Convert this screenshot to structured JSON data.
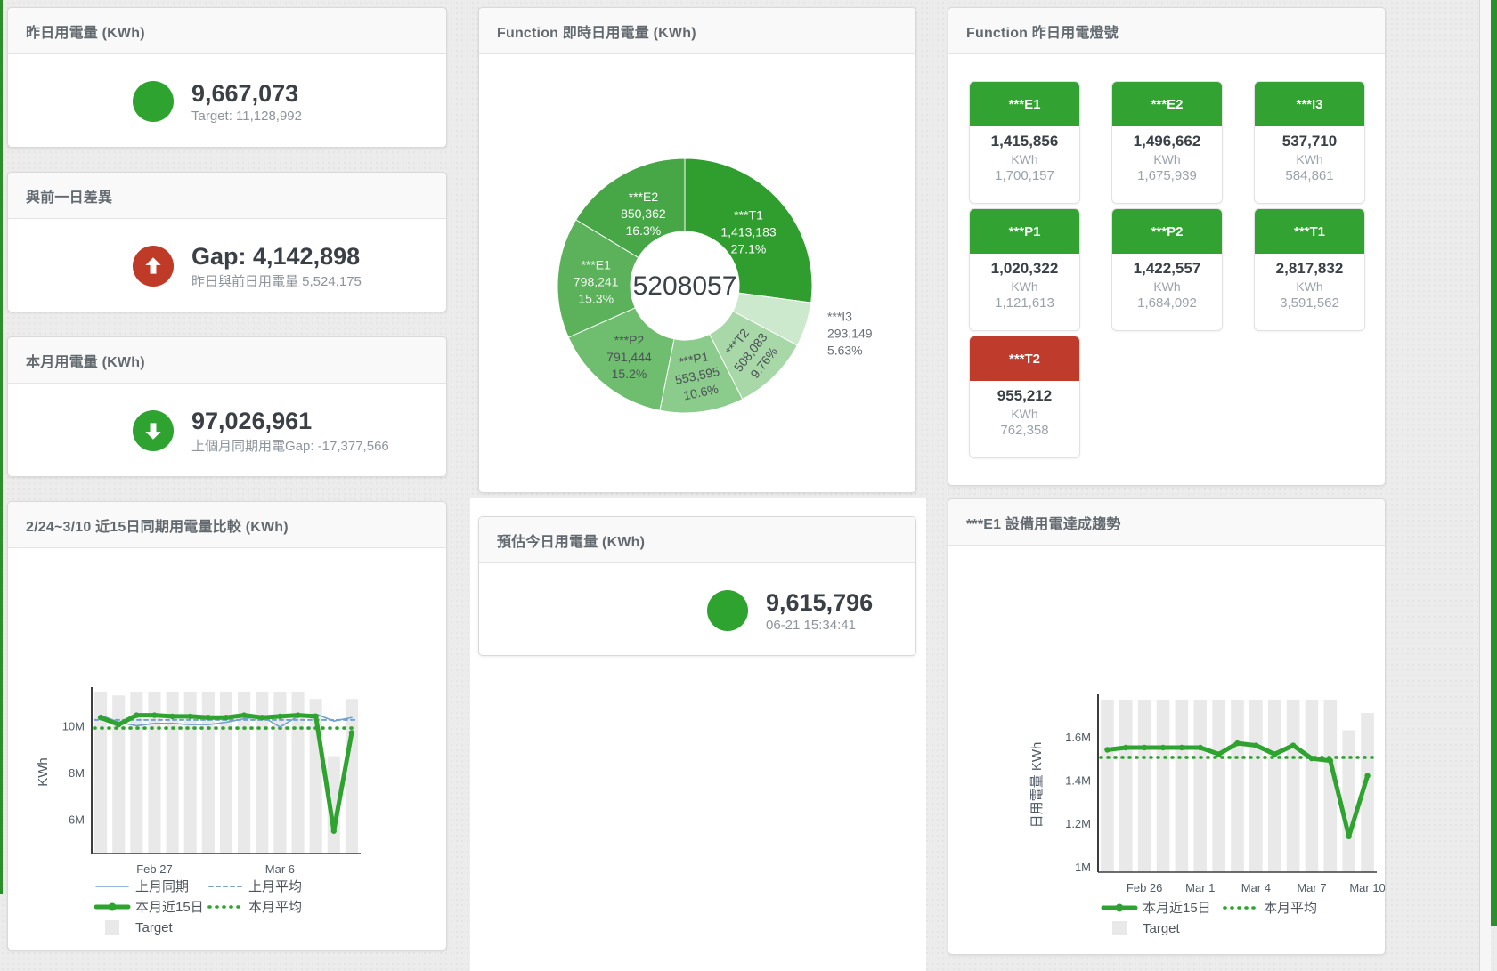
{
  "colors": {
    "green": "#2fa32f",
    "red": "#c03a28",
    "tile_green": "#32a232",
    "tile_red": "#bf3b2b",
    "blue_line": "#72a1cb",
    "bar_gray": "#e9e9e9",
    "page_bg": "#ececec"
  },
  "panels": {
    "yesterday": {
      "title": "昨日用電量 (KWh)",
      "value": "9,667,073",
      "subtext": "Target: 11,128,992"
    },
    "gap": {
      "title": "與前一日差異",
      "value": "Gap: 4,142,898",
      "subtext": "昨日與前日用電量 5,524,175"
    },
    "month": {
      "title": "本月用電量 (KWh)",
      "value": "97,026,961",
      "subtext": "上個月同期用電Gap: -17,377,566"
    },
    "forecast": {
      "title": "預估今日用電量 (KWh)",
      "value": "9,615,796",
      "subtext": "06-21 15:34:41"
    },
    "realtime": {
      "title": "Function 即時日用電量 (KWh)"
    },
    "lights": {
      "title": "Function 昨日用電燈號"
    },
    "compare": {
      "title": "2/24~3/10 近15日同期用電量比較 (KWh)"
    },
    "e1trend": {
      "title": "***E1 設備用電達成趨勢"
    }
  },
  "lights_tiles": [
    {
      "label": "***E1",
      "value": "1,415,856",
      "unit": "KWh",
      "target": "1,700,157",
      "status": "green"
    },
    {
      "label": "***E2",
      "value": "1,496,662",
      "unit": "KWh",
      "target": "1,675,939",
      "status": "green"
    },
    {
      "label": "***I3",
      "value": "537,710",
      "unit": "KWh",
      "target": "584,861",
      "status": "green"
    },
    {
      "label": "***P1",
      "value": "1,020,322",
      "unit": "KWh",
      "target": "1,121,613",
      "status": "green"
    },
    {
      "label": "***P2",
      "value": "1,422,557",
      "unit": "KWh",
      "target": "1,684,092",
      "status": "green"
    },
    {
      "label": "***T1",
      "value": "2,817,832",
      "unit": "KWh",
      "target": "3,591,562",
      "status": "green"
    },
    {
      "label": "***T2",
      "value": "955,212",
      "unit": "KWh",
      "target": "762,358",
      "status": "red"
    }
  ],
  "chart_data": [
    {
      "type": "pie",
      "title": "Function 即時日用電量 (KWh)",
      "center_total": "5208057",
      "legend_position": "none",
      "slices": [
        {
          "name": "***T1",
          "value": 1413183,
          "pct": "27.1%",
          "color": "#2f9e2f",
          "label_color": "#ffffff",
          "label_r": 95,
          "label_rot": 0,
          "placement": "inside"
        },
        {
          "name": "***I3",
          "value": 293149,
          "pct": "5.63%",
          "color": "#cde9cd",
          "label_color": "#6a7076",
          "label_r": 168,
          "label_rot": 0,
          "placement": "outside"
        },
        {
          "name": "***T2",
          "value": 508083,
          "pct": "9.76%",
          "color": "#a8d8a8",
          "label_color": "#4c5258",
          "label_r": 103,
          "label_rot": -52,
          "placement": "inside"
        },
        {
          "name": "***P1",
          "value": 553595,
          "pct": "10.6%",
          "color": "#8bcb8b",
          "label_color": "#4c5258",
          "label_r": 100,
          "label_rot": -12,
          "placement": "inside"
        },
        {
          "name": "***P2",
          "value": 791444,
          "pct": "15.2%",
          "color": "#6fbd6f",
          "label_color": "#4c5258",
          "label_r": 100,
          "label_rot": 0,
          "placement": "inside"
        },
        {
          "name": "***E1",
          "value": 798241,
          "pct": "15.3%",
          "color": "#5bb25b",
          "label_color": "#f2f5f2",
          "label_r": 100,
          "label_rot": 0,
          "placement": "inside"
        },
        {
          "name": "***E2",
          "value": 850362,
          "pct": "16.3%",
          "color": "#47a747",
          "label_color": "#ffffff",
          "label_r": 95,
          "label_rot": 0,
          "placement": "inside"
        }
      ]
    },
    {
      "type": "line",
      "title": "2/24~3/10 近15日同期用電量比較 (KWh)",
      "ylabel": "KWh",
      "unit_scale": "millions",
      "grid": false,
      "categories": [
        "2/24",
        "2/25",
        "2/26",
        "2/27",
        "2/28",
        "3/1",
        "3/2",
        "3/3",
        "3/4",
        "3/5",
        "3/6",
        "3/7",
        "3/8",
        "3/9",
        "3/10"
      ],
      "target_bars": [
        11.45,
        11.3,
        11.45,
        11.45,
        11.45,
        11.45,
        11.45,
        11.45,
        11.45,
        11.45,
        11.45,
        11.45,
        11.15,
        8.7,
        11.15
      ],
      "series": [
        {
          "name": "上月同期",
          "style": "line-blue",
          "values": [
            10.45,
            10.15,
            10.0,
            10.1,
            10.1,
            10.05,
            10.05,
            10.15,
            10.3,
            10.4,
            9.95,
            10.4,
            10.5,
            10.2,
            10.35
          ]
        },
        {
          "name": "本月近15日",
          "style": "line-green",
          "values": [
            10.35,
            10.05,
            10.45,
            10.45,
            10.4,
            10.4,
            10.35,
            10.35,
            10.45,
            10.35,
            10.4,
            10.45,
            10.4,
            5.5,
            9.7
          ]
        }
      ],
      "avg_lines": [
        {
          "name": "上月平均",
          "style": "dash-blue",
          "value": 10.25
        },
        {
          "name": "本月平均",
          "style": "dot-green",
          "value": 9.9
        }
      ],
      "target_name": "Target",
      "ylim": [
        4.54,
        11.5
      ],
      "yticks": [
        {
          "v": 6,
          "label": "6M"
        },
        {
          "v": 8,
          "label": "8M"
        },
        {
          "v": 10,
          "label": "10M"
        }
      ],
      "xticks": [
        {
          "i": 3,
          "label": "Feb 27"
        },
        {
          "i": 10,
          "label": "Mar 6"
        }
      ],
      "legend_rows": [
        [
          {
            "label": "上月同期",
            "style": "line-blue"
          },
          {
            "label": "上月平均",
            "style": "dash-blue"
          }
        ],
        [
          {
            "label": "本月近15日",
            "style": "line-green"
          },
          {
            "label": "本月平均",
            "style": "dot-green"
          }
        ],
        [
          {
            "label": "Target",
            "style": "box-gray"
          }
        ]
      ]
    },
    {
      "type": "line",
      "title": "***E1 設備用電達成趨勢",
      "ylabel": "日用電量 KWh",
      "unit_scale": "millions",
      "grid": false,
      "categories": [
        "2/24",
        "2/25",
        "2/26",
        "2/27",
        "2/28",
        "3/1",
        "3/2",
        "3/3",
        "3/4",
        "3/5",
        "3/6",
        "3/7",
        "3/8",
        "3/9",
        "3/10"
      ],
      "target_bars": [
        1.77,
        1.77,
        1.77,
        1.77,
        1.77,
        1.77,
        1.77,
        1.77,
        1.77,
        1.77,
        1.77,
        1.77,
        1.77,
        1.63,
        1.71
      ],
      "series": [
        {
          "name": "本月近15日",
          "style": "line-green",
          "values": [
            1.54,
            1.55,
            1.55,
            1.55,
            1.55,
            1.55,
            1.52,
            1.57,
            1.56,
            1.52,
            1.56,
            1.5,
            1.49,
            1.14,
            1.42
          ]
        }
      ],
      "avg_lines": [
        {
          "name": "本月平均",
          "style": "dot-green",
          "value": 1.505
        }
      ],
      "target_name": "Target",
      "ylim": [
        0.975,
        1.78
      ],
      "yticks": [
        {
          "v": 1,
          "label": "1M"
        },
        {
          "v": 1.2,
          "label": "1.2M"
        },
        {
          "v": 1.4,
          "label": "1.4M"
        },
        {
          "v": 1.6,
          "label": "1.6M"
        }
      ],
      "xticks": [
        {
          "i": 2,
          "label": "Feb 26"
        },
        {
          "i": 5,
          "label": "Mar 1"
        },
        {
          "i": 8,
          "label": "Mar 4"
        },
        {
          "i": 11,
          "label": "Mar 7"
        },
        {
          "i": 14,
          "label": "Mar 10"
        }
      ],
      "legend_rows": [
        [
          {
            "label": "本月近15日",
            "style": "line-green"
          },
          {
            "label": "本月平均",
            "style": "dot-green"
          }
        ],
        [
          {
            "label": "Target",
            "style": "box-gray"
          }
        ]
      ]
    }
  ]
}
